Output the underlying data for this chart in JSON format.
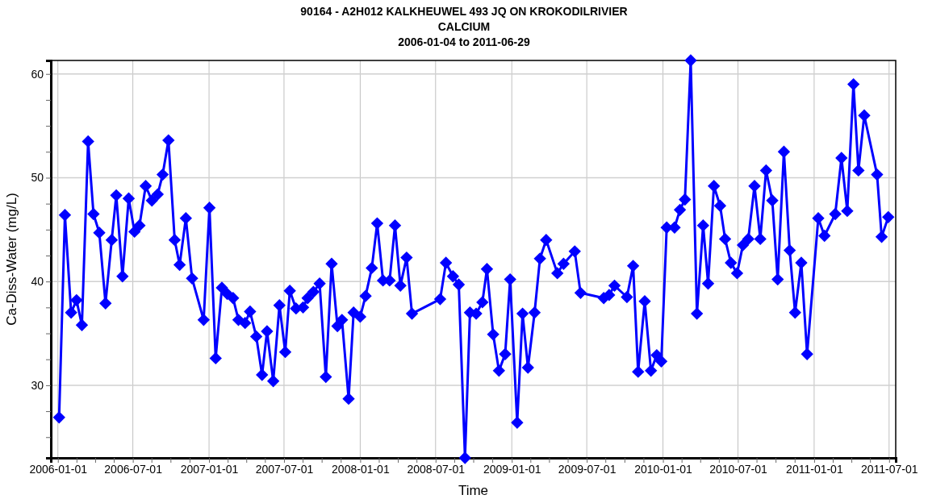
{
  "chart_data": {
    "type": "line",
    "title": "90164 - A2H012 KALKHEUWEL 493 JQ ON KROKODILRIVIER\nCALCIUM\n2006-01-04 to 2011-06-29",
    "xlabel": "Time",
    "ylabel": "Ca-Diss-Water (mg/L)",
    "marker": "diamond",
    "line_style": "solid",
    "grid": true,
    "xlim": [
      "2005-12-15",
      "2011-07-17"
    ],
    "ylim": [
      23,
      61.3
    ],
    "xticks": [
      {
        "value": "2006-01-01",
        "label": "2006-01-01"
      },
      {
        "value": "2006-02-15",
        "label": null
      },
      {
        "value": "2006-04-01",
        "label": null
      },
      {
        "value": "2006-05-16",
        "label": null
      },
      {
        "value": "2006-07-01",
        "label": "2006-07-01"
      },
      {
        "value": "2006-08-15",
        "label": null
      },
      {
        "value": "2006-09-30",
        "label": null
      },
      {
        "value": "2006-11-15",
        "label": null
      },
      {
        "value": "2007-01-01",
        "label": "2007-01-01"
      },
      {
        "value": "2007-02-15",
        "label": null
      },
      {
        "value": "2007-04-01",
        "label": null
      },
      {
        "value": "2007-05-16",
        "label": null
      },
      {
        "value": "2007-07-01",
        "label": "2007-07-01"
      },
      {
        "value": "2007-08-15",
        "label": null
      },
      {
        "value": "2007-09-30",
        "label": null
      },
      {
        "value": "2007-11-15",
        "label": null
      },
      {
        "value": "2008-01-01",
        "label": "2008-01-01"
      },
      {
        "value": "2008-02-15",
        "label": null
      },
      {
        "value": "2008-04-01",
        "label": null
      },
      {
        "value": "2008-05-16",
        "label": null
      },
      {
        "value": "2008-07-01",
        "label": "2008-07-01"
      },
      {
        "value": "2008-08-15",
        "label": null
      },
      {
        "value": "2008-09-30",
        "label": null
      },
      {
        "value": "2008-11-15",
        "label": null
      },
      {
        "value": "2009-01-01",
        "label": "2009-01-01"
      },
      {
        "value": "2009-02-15",
        "label": null
      },
      {
        "value": "2009-04-01",
        "label": null
      },
      {
        "value": "2009-05-16",
        "label": null
      },
      {
        "value": "2009-07-01",
        "label": "2009-07-01"
      },
      {
        "value": "2009-08-15",
        "label": null
      },
      {
        "value": "2009-09-30",
        "label": null
      },
      {
        "value": "2009-11-15",
        "label": null
      },
      {
        "value": "2010-01-01",
        "label": "2010-01-01"
      },
      {
        "value": "2010-02-15",
        "label": null
      },
      {
        "value": "2010-04-01",
        "label": null
      },
      {
        "value": "2010-05-16",
        "label": null
      },
      {
        "value": "2010-07-01",
        "label": "2010-07-01"
      },
      {
        "value": "2010-08-15",
        "label": null
      },
      {
        "value": "2010-09-30",
        "label": null
      },
      {
        "value": "2010-11-15",
        "label": null
      },
      {
        "value": "2011-01-01",
        "label": "2011-01-01"
      },
      {
        "value": "2011-02-15",
        "label": null
      },
      {
        "value": "2011-04-01",
        "label": null
      },
      {
        "value": "2011-05-16",
        "label": null
      },
      {
        "value": "2011-07-01",
        "label": "2011-07-01"
      }
    ],
    "yticks": [
      {
        "value": 25,
        "label": null
      },
      {
        "value": 27.5,
        "label": null
      },
      30,
      {
        "value": 32.5,
        "label": null
      },
      {
        "value": 35,
        "label": null
      },
      {
        "value": 37.5,
        "label": null
      },
      40,
      {
        "value": 42.5,
        "label": null
      },
      {
        "value": 45,
        "label": null
      },
      {
        "value": 47.5,
        "label": null
      },
      50,
      {
        "value": 52.5,
        "label": null
      },
      {
        "value": 55,
        "label": null
      },
      {
        "value": 57.5,
        "label": null
      },
      60
    ],
    "series": [
      {
        "color": "#0000ff",
        "x": [
          "2006-01-04",
          "2006-01-18",
          "2006-02-02",
          "2006-02-15",
          "2006-02-28",
          "2006-03-15",
          "2006-03-28",
          "2006-04-11",
          "2006-04-26",
          "2006-05-11",
          "2006-05-22",
          "2006-06-06",
          "2006-06-21",
          "2006-07-05",
          "2006-07-17",
          "2006-08-01",
          "2006-08-16",
          "2006-08-30",
          "2006-09-11",
          "2006-09-25",
          "2006-10-10",
          "2006-10-22",
          "2006-11-06",
          "2006-11-21",
          "2006-12-19",
          "2007-01-02",
          "2007-01-17",
          "2007-02-01",
          "2007-02-14",
          "2007-02-28",
          "2007-03-13",
          "2007-03-29",
          "2007-04-10",
          "2007-04-25",
          "2007-05-09",
          "2007-05-21",
          "2007-06-05",
          "2007-06-20",
          "2007-07-04",
          "2007-07-15",
          "2007-07-30",
          "2007-08-16",
          "2007-08-27",
          "2007-09-10",
          "2007-09-25",
          "2007-10-10",
          "2007-10-24",
          "2007-11-07",
          "2007-11-18",
          "2007-12-04",
          "2007-12-16",
          "2008-01-01",
          "2008-01-14",
          "2008-01-29",
          "2008-02-11",
          "2008-02-25",
          "2008-03-12",
          "2008-03-25",
          "2008-04-07",
          "2008-04-22",
          "2008-05-05",
          "2008-07-12",
          "2008-07-26",
          "2008-08-12",
          "2008-08-26",
          "2008-09-10",
          "2008-09-22",
          "2008-10-07",
          "2008-10-22",
          "2008-11-02",
          "2008-11-17",
          "2008-12-01",
          "2008-12-16",
          "2008-12-28",
          "2009-01-14",
          "2009-01-27",
          "2009-02-09",
          "2009-02-25",
          "2009-03-10",
          "2009-03-25",
          "2009-04-21",
          "2009-05-06",
          "2009-06-02",
          "2009-06-16",
          "2009-08-11",
          "2009-08-24",
          "2009-09-06",
          "2009-10-06",
          "2009-10-21",
          "2009-11-02",
          "2009-11-18",
          "2009-12-03",
          "2009-12-17",
          "2009-12-28",
          "2010-01-10",
          "2010-01-29",
          "2010-02-11",
          "2010-02-23",
          "2010-03-09",
          "2010-03-24",
          "2010-04-08",
          "2010-04-20",
          "2010-05-04",
          "2010-05-19",
          "2010-05-31",
          "2010-06-14",
          "2010-06-29",
          "2010-07-13",
          "2010-07-26",
          "2010-08-10",
          "2010-08-24",
          "2010-09-07",
          "2010-09-22",
          "2010-10-05",
          "2010-10-20",
          "2010-11-03",
          "2010-11-16",
          "2010-12-01",
          "2010-12-15",
          "2011-01-11",
          "2011-01-26",
          "2011-02-21",
          "2011-03-08",
          "2011-03-22",
          "2011-04-06",
          "2011-04-18",
          "2011-05-02",
          "2011-06-02",
          "2011-06-13",
          "2011-06-29"
        ],
        "values": [
          26.9,
          46.4,
          37.0,
          38.2,
          35.8,
          53.5,
          46.5,
          44.7,
          37.9,
          44.0,
          48.3,
          40.5,
          48.0,
          44.8,
          45.4,
          49.2,
          47.8,
          48.4,
          50.3,
          53.6,
          44.0,
          41.6,
          46.1,
          40.3,
          36.3,
          47.1,
          32.6,
          39.4,
          38.8,
          38.4,
          36.3,
          36.0,
          37.1,
          34.7,
          31.0,
          35.2,
          30.4,
          37.7,
          33.2,
          39.1,
          37.4,
          37.5,
          38.4,
          39.0,
          39.8,
          30.8,
          41.7,
          35.7,
          36.3,
          28.7,
          37.0,
          36.6,
          38.6,
          41.3,
          45.6,
          40.1,
          40.1,
          45.4,
          39.6,
          42.3,
          36.9,
          38.3,
          41.8,
          40.5,
          39.7,
          23.0,
          37.0,
          36.9,
          38.0,
          41.2,
          34.9,
          31.4,
          33.0,
          40.2,
          26.4,
          36.9,
          31.7,
          37.0,
          42.2,
          44.0,
          40.8,
          41.7,
          42.9,
          38.9,
          38.4,
          38.7,
          39.6,
          38.5,
          41.5,
          31.3,
          38.1,
          31.4,
          32.9,
          32.3,
          45.2,
          45.2,
          46.9,
          47.9,
          61.3,
          36.9,
          45.4,
          39.8,
          49.2,
          47.3,
          44.1,
          41.8,
          40.8,
          43.5,
          44.1,
          49.2,
          44.1,
          50.7,
          47.8,
          40.2,
          52.5,
          43.0,
          37.0,
          41.8,
          33.0,
          46.1,
          44.4,
          46.5,
          51.9,
          46.8,
          59.0,
          50.7,
          56.0,
          50.3,
          44.3,
          46.2
        ]
      }
    ]
  }
}
